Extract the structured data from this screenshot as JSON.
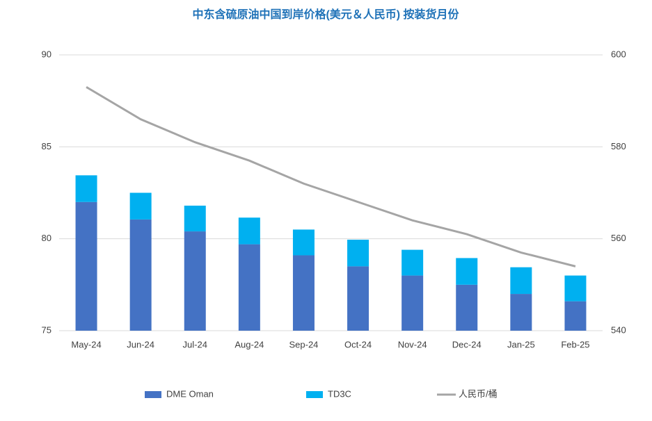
{
  "chart_data": {
    "type": "bar",
    "stacked": true,
    "title": "中东含硫原油中国到岸价格(美元＆人民币) 按装货月份",
    "categories": [
      "May-24",
      "Jun-24",
      "Jul-24",
      "Aug-24",
      "Sep-24",
      "Oct-24",
      "Nov-24",
      "Dec-24",
      "Jan-25",
      "Feb-25"
    ],
    "series": [
      {
        "name": "DME Oman",
        "color": "#4472c4",
        "type": "bar",
        "values": [
          82.0,
          81.05,
          80.4,
          79.7,
          79.1,
          78.5,
          78.0,
          77.5,
          77.0,
          76.6
        ]
      },
      {
        "name": "TD3C",
        "color": "#00b0f0",
        "type": "bar",
        "values": [
          1.45,
          1.45,
          1.4,
          1.45,
          1.4,
          1.45,
          1.4,
          1.45,
          1.45,
          1.4
        ]
      },
      {
        "name": "人民币/桶",
        "color": "#a5a5a5",
        "type": "line",
        "axis": "y2",
        "values": [
          593,
          586,
          581,
          577,
          572,
          568,
          564,
          561,
          557,
          554
        ]
      }
    ],
    "ylim": [
      75,
      90
    ],
    "yticks": [
      75,
      80,
      85,
      90
    ],
    "y2lim": [
      540,
      600
    ],
    "y2ticks": [
      540,
      560,
      580,
      600
    ],
    "grid": true,
    "legend": "bottom"
  }
}
